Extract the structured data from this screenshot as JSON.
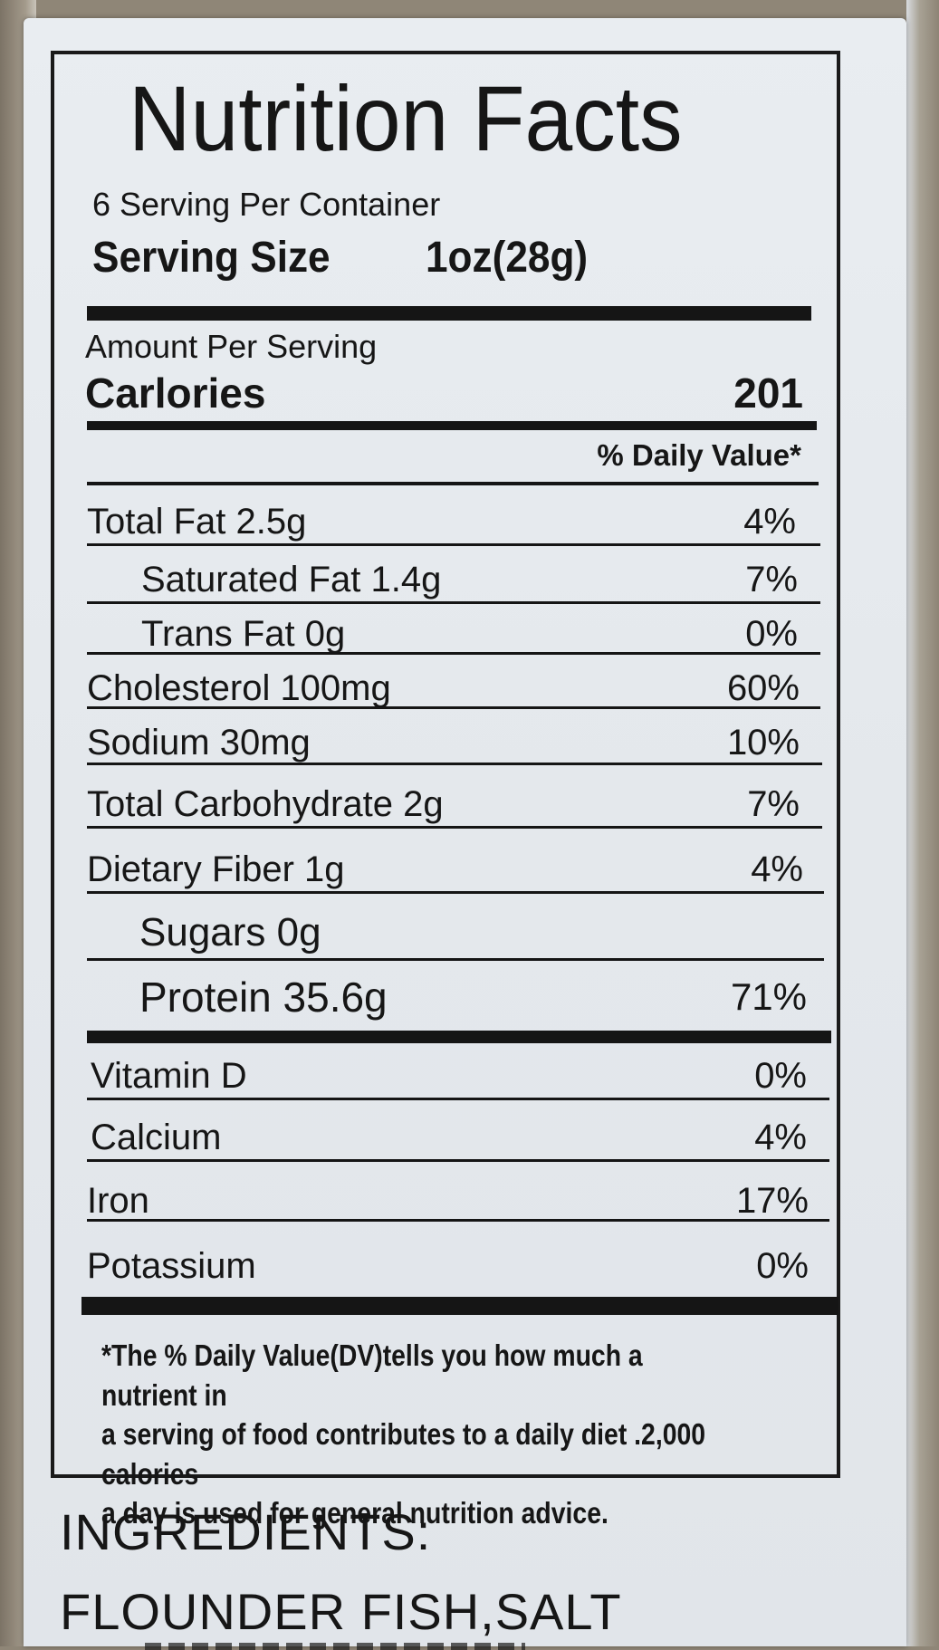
{
  "label": {
    "title": "Nutrition Facts",
    "servings_per_container": "6 Serving Per Container",
    "serving_size_label": "Serving Size",
    "serving_size_value": "1oz(28g)",
    "amount_per_serving": "Amount Per Serving",
    "calories_label": "Carlories",
    "calories_value": "201",
    "daily_value_header": "% Daily Value*",
    "nutrients": [
      {
        "label": "Total Fat  2.5g",
        "dv": "4%"
      },
      {
        "label": "Saturated Fat  1.4g",
        "dv": "7%"
      },
      {
        "label": "Trans Fat  0g",
        "dv": "0%"
      },
      {
        "label": "Cholesterol  100mg",
        "dv": "60%"
      },
      {
        "label": "Sodium  30mg",
        "dv": "10%"
      },
      {
        "label": "Total Carbohydrate 2g",
        "dv": "7%"
      },
      {
        "label": "Dietary Fiber  1g",
        "dv": "4%"
      },
      {
        "label": "Sugars 0g",
        "dv": ""
      },
      {
        "label": "Protein 35.6g",
        "dv": "71%"
      }
    ],
    "minerals": [
      {
        "label": "Vitamin D",
        "dv": "0%"
      },
      {
        "label": "Calcium",
        "dv": "4%"
      },
      {
        "label": "Iron",
        "dv": "17%"
      },
      {
        "label": "Potassium",
        "dv": "0%"
      }
    ],
    "footnote_lines": [
      "*The % Daily Value(DV)tells you how much a nutrient in",
      "a serving of food contributes to a daily diet .2,000 calories",
      "a day is used for general nutrition advice."
    ]
  },
  "ingredients": {
    "heading": "INGREDIENTS:",
    "text": "FLOUNDER FISH,SALT"
  }
}
